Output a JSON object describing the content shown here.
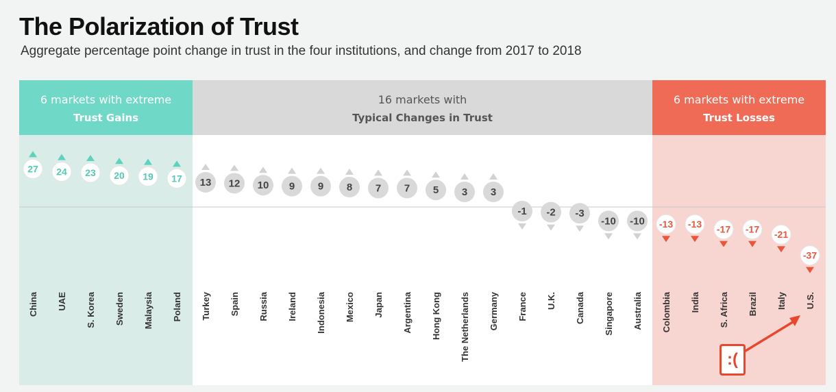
{
  "header": {
    "title": "The Polarization of Trust",
    "subtitle": "Aggregate percentage point change in trust in the four institutions, and change from 2017 to 2018"
  },
  "groups": [
    {
      "line1": "6 markets with extreme",
      "line2": "Trust Gains",
      "color": "#6fd8c6",
      "bg": "#d9ece7",
      "text_color": "#ffffff",
      "value_color": "#55c9b6"
    },
    {
      "line1": "16 markets with",
      "line2": "Typical Changes in Trust",
      "color": "#d9d9d9",
      "bg": "#ffffff",
      "text_color": "#555555",
      "value_color": "#444444"
    },
    {
      "line1": "6 markets with extreme",
      "line2": "Trust Losses",
      "color": "#ef6b55",
      "bg": "#f7d6d1",
      "text_color": "#ffffff",
      "value_color": "#e8563e"
    }
  ],
  "chart_data": {
    "type": "scatter",
    "title": "The Polarization of Trust",
    "subtitle": "Aggregate percentage point change in trust in the four institutions, and change from 2017 to 2018",
    "categories": [
      "China",
      "UAE",
      "S. Korea",
      "Sweden",
      "Malaysia",
      "Poland",
      "Turkey",
      "Spain",
      "Russia",
      "Ireland",
      "Indonesia",
      "Mexico",
      "Japan",
      "Argentina",
      "Hong Kong",
      "The Netherlands",
      "Germany",
      "France",
      "U.K.",
      "Canada",
      "Singapore",
      "Australia",
      "Colombia",
      "India",
      "S. Africa",
      "Brazil",
      "Italy",
      "U.S."
    ],
    "values": [
      27,
      24,
      23,
      20,
      19,
      17,
      13,
      12,
      10,
      9,
      9,
      8,
      7,
      7,
      5,
      3,
      3,
      -1,
      -2,
      -3,
      -10,
      -10,
      -13,
      -13,
      -17,
      -17,
      -21,
      -37
    ],
    "group_index": [
      0,
      0,
      0,
      0,
      0,
      0,
      1,
      1,
      1,
      1,
      1,
      1,
      1,
      1,
      1,
      1,
      1,
      1,
      1,
      1,
      1,
      1,
      2,
      2,
      2,
      2,
      2,
      2
    ],
    "ylim": [
      -40,
      30
    ],
    "baseline": 0
  },
  "annotation": {
    "text": ":(",
    "color": "#e8472e"
  }
}
